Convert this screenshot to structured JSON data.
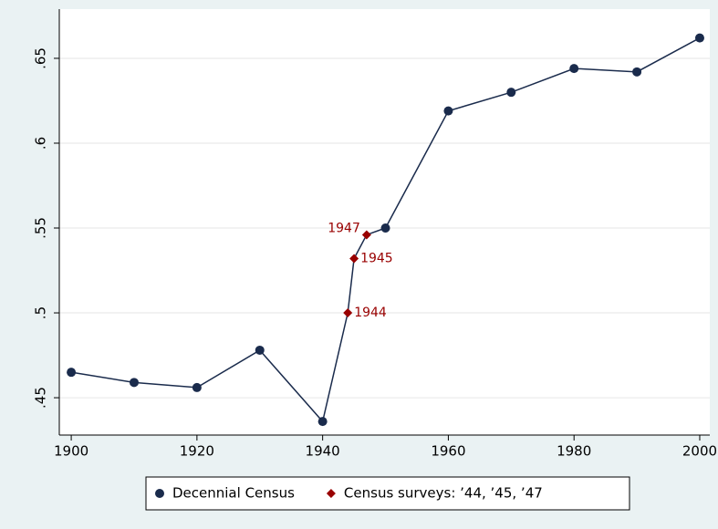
{
  "chart_data": {
    "type": "line",
    "series": [
      {
        "name": "Decennial Census",
        "color": "#1a2b4c",
        "marker": "circle",
        "x": [
          1900,
          1910,
          1920,
          1930,
          1940,
          1950,
          1960,
          1970,
          1980,
          1990,
          2000
        ],
        "values": [
          0.465,
          0.459,
          0.456,
          0.478,
          0.436,
          0.55,
          0.619,
          0.63,
          0.644,
          0.642,
          0.662
        ]
      },
      {
        "name": "Census surveys: ’44, ’45, ’47",
        "color": "#990000",
        "marker": "diamond",
        "x": [
          1944,
          1945,
          1947
        ],
        "values": [
          0.5,
          0.532,
          0.546
        ],
        "point_labels": [
          "1944",
          "1945",
          "1947"
        ]
      }
    ],
    "xlim": [
      1898.1,
      2001.6
    ],
    "xticks": [
      1900,
      1920,
      1940,
      1960,
      1980,
      2000
    ],
    "ylim": [
      0.428,
      0.679
    ],
    "yticks": [
      {
        "value": 0.45,
        "label": ".45"
      },
      {
        "value": 0.5,
        "label": ".5"
      },
      {
        "value": 0.55,
        "label": ".55"
      },
      {
        "value": 0.6,
        "label": ".6"
      },
      {
        "value": 0.65,
        "label": ".65"
      }
    ],
    "grid": true,
    "connect_all": true,
    "legend": "bottom"
  }
}
